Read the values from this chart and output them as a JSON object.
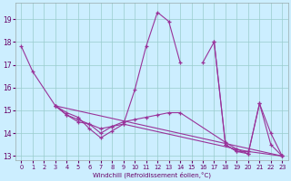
{
  "xlabel": "Windchill (Refroidissement éolien,°C)",
  "bg_color": "#cceeff",
  "grid_color": "#99cccc",
  "line_color": "#993399",
  "xlim": [
    -0.5,
    23.5
  ],
  "ylim": [
    12.8,
    19.7
  ],
  "yticks": [
    13,
    14,
    15,
    16,
    17,
    18,
    19
  ],
  "xticks": [
    0,
    1,
    2,
    3,
    4,
    5,
    6,
    7,
    8,
    9,
    10,
    11,
    12,
    13,
    14,
    15,
    16,
    17,
    18,
    19,
    20,
    21,
    22,
    23
  ],
  "series": [
    {
      "x": [
        0,
        1,
        3,
        4,
        5,
        6,
        7,
        8,
        9,
        10,
        11,
        12,
        13,
        14
      ],
      "y": [
        17.8,
        16.7,
        15.2,
        14.9,
        14.7,
        14.2,
        13.8,
        14.1,
        14.4,
        15.9,
        17.8,
        19.3,
        18.9,
        17.1
      ]
    },
    {
      "x": [
        16,
        17,
        18,
        19,
        20,
        21,
        22,
        23
      ],
      "y": [
        17.1,
        18.0,
        13.5,
        13.2,
        13.1,
        15.3,
        14.0,
        13.0
      ]
    },
    {
      "x": [
        3,
        4,
        5,
        6,
        7,
        8,
        9,
        19,
        20,
        21,
        22,
        23
      ],
      "y": [
        15.2,
        14.8,
        14.5,
        14.4,
        14.0,
        14.3,
        14.4,
        13.3,
        13.1,
        15.3,
        13.5,
        13.0
      ]
    },
    {
      "x": [
        3,
        4,
        5,
        6,
        7,
        8,
        9,
        10,
        11,
        12,
        13,
        14,
        18,
        19,
        20,
        23
      ],
      "y": [
        15.2,
        14.8,
        14.6,
        14.4,
        14.2,
        14.3,
        14.5,
        14.6,
        14.7,
        14.8,
        14.9,
        14.9,
        13.6,
        13.3,
        13.2,
        13.0
      ]
    },
    {
      "x": [
        3,
        23
      ],
      "y": [
        15.2,
        13.0
      ]
    },
    {
      "x": [
        17,
        18,
        19,
        20
      ],
      "y": [
        18.0,
        13.5,
        13.2,
        13.2
      ]
    }
  ]
}
